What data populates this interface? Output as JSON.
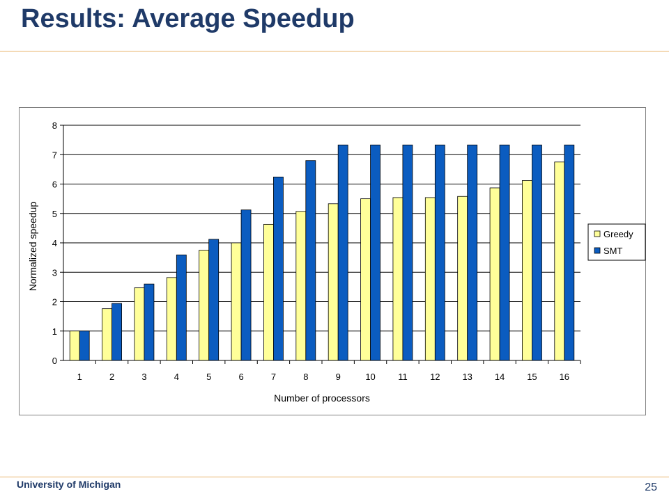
{
  "slide": {
    "title": "Results: Average Speedup",
    "footer_org": "University of Michigan",
    "page_number": "25"
  },
  "colors": {
    "title": "#1f3a68",
    "rule": "#e8b36a",
    "greedy": "#ffff99",
    "smt": "#0b5cc0"
  },
  "chart_data": {
    "type": "bar",
    "title": "",
    "xlabel": "Number of processors",
    "ylabel": "Normalized speedup",
    "ylim": [
      0,
      8
    ],
    "yticks": [
      0,
      1,
      2,
      3,
      4,
      5,
      6,
      7,
      8
    ],
    "grid": "horizontal",
    "legend_position": "right",
    "categories": [
      "1",
      "2",
      "3",
      "4",
      "5",
      "6",
      "7",
      "8",
      "9",
      "10",
      "11",
      "12",
      "13",
      "14",
      "15",
      "16"
    ],
    "series": [
      {
        "name": "Greedy",
        "color": "#ffff99",
        "values": [
          1.0,
          1.76,
          2.47,
          2.82,
          3.75,
          4.0,
          4.63,
          5.07,
          5.33,
          5.5,
          5.54,
          5.54,
          5.58,
          5.87,
          6.12,
          6.75
        ]
      },
      {
        "name": "SMT",
        "color": "#0b5cc0",
        "values": [
          1.0,
          1.94,
          2.6,
          3.59,
          4.12,
          5.12,
          6.24,
          6.8,
          7.33,
          7.33,
          7.33,
          7.33,
          7.33,
          7.33,
          7.33,
          7.33
        ]
      }
    ]
  }
}
